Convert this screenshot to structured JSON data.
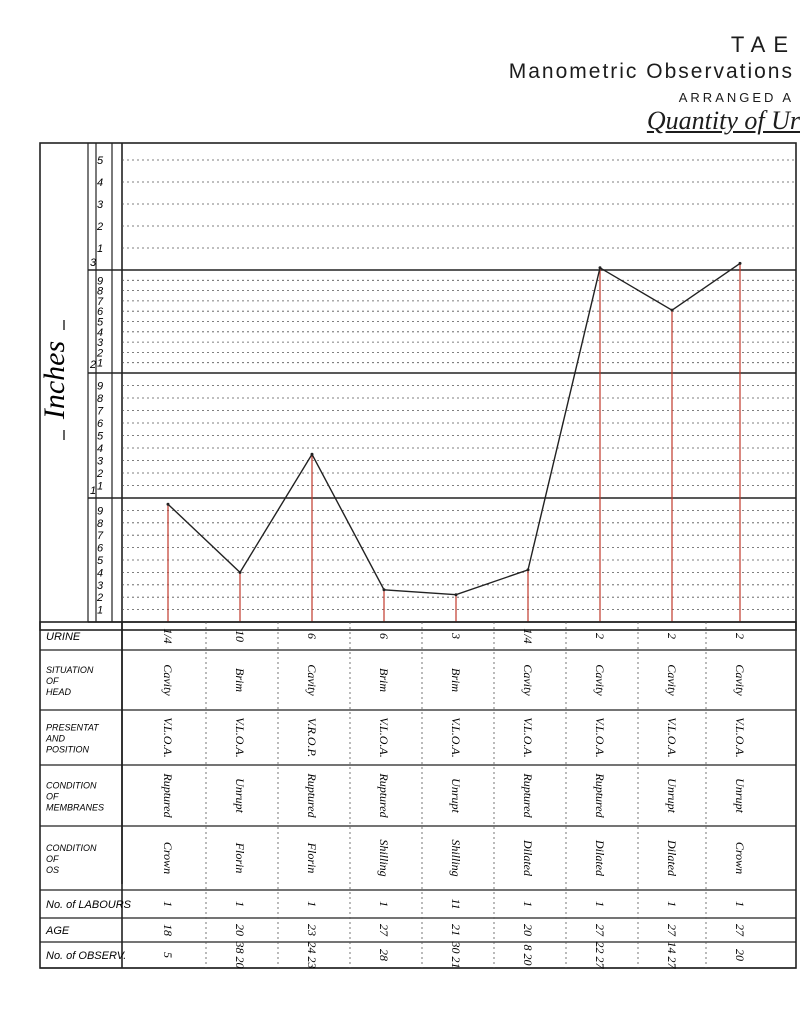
{
  "header": {
    "title_partial": "TAE",
    "subtitle": "Manometric Observations",
    "arranged": "ARRANGED A",
    "quantity": "Quantity of Ur"
  },
  "chart_data": {
    "type": "line",
    "ylabel": "Inches",
    "inch_bands": [
      "3",
      "2",
      "1"
    ],
    "tenths": [
      "1",
      "2",
      "3",
      "4",
      "5",
      "6",
      "7",
      "8",
      "9"
    ],
    "top_band_tenths": [
      "1",
      "2",
      "3",
      "4",
      "5"
    ],
    "values": [
      0.95,
      0.4,
      1.35,
      0.26,
      0.22,
      0.42,
      3.01,
      2.61,
      3.03
    ],
    "ylim": [
      0.1,
      3.5
    ],
    "grid": true
  },
  "table": {
    "row_labels": [
      {
        "lines": [
          "URINE"
        ]
      },
      {
        "lines": [
          "SITUATION",
          "OF",
          "HEAD"
        ]
      },
      {
        "lines": [
          "PRESENTAT",
          "AND",
          "POSITION"
        ]
      },
      {
        "lines": [
          "CONDITION",
          "OF",
          "MEMBRANES"
        ]
      },
      {
        "lines": [
          "CONDITION",
          "OF",
          "OS"
        ]
      },
      {
        "lines": [
          "No. of LABOURS"
        ]
      },
      {
        "lines": [
          "AGE"
        ]
      },
      {
        "lines": [
          "No. of OBSERV."
        ]
      }
    ],
    "columns": [
      [
        "1/4",
        "Cavity",
        "V.L.O.A.",
        "Ruptured",
        "Crown",
        "1",
        "18",
        "5"
      ],
      [
        "10",
        "Brim",
        "V.L.O.A.",
        "Unrupt",
        "Florin",
        "1",
        "20",
        "38 20"
      ],
      [
        "6",
        "Cavity",
        "V.R.O.P.",
        "Ruptured",
        "Florin",
        "1",
        "23",
        "24 23"
      ],
      [
        "6",
        "Brim",
        "V.L.O.A.",
        "Ruptured",
        "Shilling",
        "1",
        "27",
        "28"
      ],
      [
        "3",
        "Brim",
        "V.L.O.A.",
        "Unrupt",
        "Shilling",
        "11",
        "21",
        "30 21"
      ],
      [
        "1/4",
        "Cavity",
        "V.L.O.A.",
        "Ruptured",
        "Dilated",
        "1",
        "20",
        "8 20"
      ],
      [
        "2",
        "Cavity",
        "V.L.O.A.",
        "Ruptured",
        "Dilated",
        "1",
        "27",
        "22 27"
      ],
      [
        "2",
        "Cavity",
        "V.L.O.A.",
        "Unrupt",
        "Dilated",
        "1",
        "27",
        "14 27"
      ],
      [
        "2",
        "Cavity",
        "V.L.O.A.",
        "Unrupt",
        "Crown",
        "1",
        "27",
        "20"
      ]
    ]
  }
}
